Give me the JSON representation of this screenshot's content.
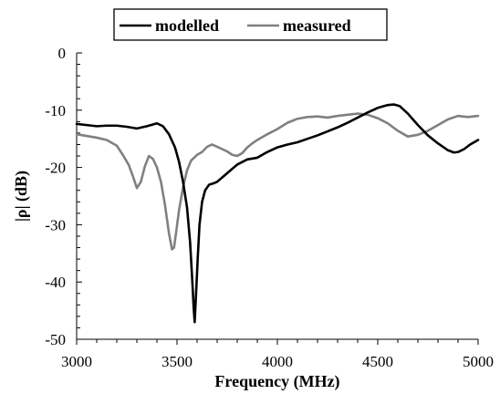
{
  "chart_data": {
    "type": "line",
    "title": "",
    "xlabel": "Frequency (MHz)",
    "ylabel": "|ρ| (dB)",
    "xlim": [
      3000,
      5000
    ],
    "ylim": [
      -50,
      0
    ],
    "xticks": [
      3000,
      3500,
      4000,
      4500,
      5000
    ],
    "yticks": [
      0,
      -10,
      -20,
      -30,
      -40,
      -50
    ],
    "grid": false,
    "legend_position": "top",
    "series": [
      {
        "name": "modelled",
        "color": "#000000",
        "x": [
          3000,
          3050,
          3100,
          3150,
          3200,
          3250,
          3300,
          3350,
          3400,
          3430,
          3460,
          3490,
          3510,
          3530,
          3550,
          3565,
          3575,
          3583,
          3588,
          3595,
          3603,
          3612,
          3625,
          3640,
          3660,
          3680,
          3700,
          3750,
          3800,
          3850,
          3900,
          3950,
          4000,
          4050,
          4100,
          4150,
          4200,
          4250,
          4300,
          4350,
          4400,
          4450,
          4500,
          4550,
          4580,
          4610,
          4650,
          4700,
          4750,
          4800,
          4850,
          4880,
          4900,
          4930,
          4960,
          5000
        ],
        "y": [
          -12.4,
          -12.6,
          -12.8,
          -12.7,
          -12.7,
          -12.9,
          -13.2,
          -12.8,
          -12.3,
          -12.8,
          -14.2,
          -16.5,
          -19.0,
          -22.5,
          -27.0,
          -33.0,
          -39.0,
          -44.5,
          -47.0,
          -42.0,
          -36.0,
          -30.0,
          -26.0,
          -24.0,
          -23.0,
          -22.8,
          -22.5,
          -21.0,
          -19.5,
          -18.6,
          -18.3,
          -17.3,
          -16.5,
          -16.0,
          -15.6,
          -15.0,
          -14.4,
          -13.7,
          -13.0,
          -12.2,
          -11.3,
          -10.4,
          -9.6,
          -9.1,
          -9.0,
          -9.3,
          -10.6,
          -12.6,
          -14.4,
          -15.8,
          -17.0,
          -17.4,
          -17.3,
          -16.8,
          -16.0,
          -15.2
        ]
      },
      {
        "name": "measured",
        "color": "#808080",
        "x": [
          3000,
          3050,
          3100,
          3150,
          3200,
          3230,
          3260,
          3280,
          3300,
          3320,
          3340,
          3360,
          3380,
          3400,
          3420,
          3440,
          3460,
          3475,
          3485,
          3495,
          3510,
          3530,
          3550,
          3570,
          3600,
          3625,
          3650,
          3675,
          3700,
          3725,
          3750,
          3775,
          3800,
          3825,
          3850,
          3875,
          3900,
          3950,
          4000,
          4050,
          4100,
          4150,
          4200,
          4250,
          4300,
          4350,
          4400,
          4450,
          4500,
          4550,
          4600,
          4650,
          4700,
          4750,
          4800,
          4850,
          4900,
          4950,
          5000
        ],
        "y": [
          -14.2,
          -14.5,
          -14.8,
          -15.2,
          -16.2,
          -17.8,
          -19.6,
          -21.5,
          -23.6,
          -22.5,
          -19.8,
          -18.0,
          -18.5,
          -20.0,
          -22.5,
          -26.5,
          -31.5,
          -34.3,
          -34.0,
          -31.5,
          -27.5,
          -23.5,
          -20.5,
          -18.8,
          -17.8,
          -17.3,
          -16.4,
          -16.0,
          -16.4,
          -16.8,
          -17.2,
          -17.8,
          -18.0,
          -17.5,
          -16.5,
          -15.8,
          -15.2,
          -14.2,
          -13.3,
          -12.2,
          -11.5,
          -11.2,
          -11.1,
          -11.3,
          -11.0,
          -10.8,
          -10.6,
          -10.8,
          -11.4,
          -12.3,
          -13.6,
          -14.6,
          -14.3,
          -13.6,
          -12.6,
          -11.6,
          -11.0,
          -11.2,
          -11.0
        ]
      }
    ]
  }
}
